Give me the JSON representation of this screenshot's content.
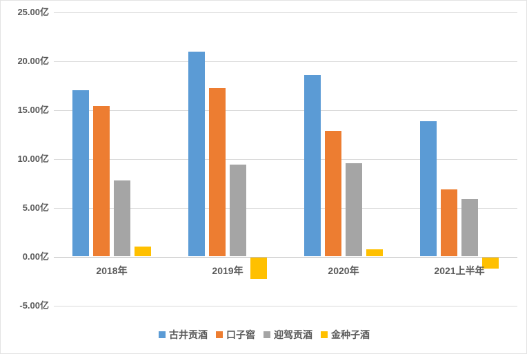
{
  "chart_data": {
    "type": "bar",
    "title": "",
    "unit": "亿",
    "categories": [
      "2018年",
      "2019年",
      "2020年",
      "2021上半年"
    ],
    "series": [
      {
        "name": "古井贡酒",
        "color": "#5B9BD5",
        "values": [
          16.95,
          20.9,
          18.55,
          13.8
        ]
      },
      {
        "name": "口子窖",
        "color": "#ED7D31",
        "values": [
          15.35,
          17.2,
          12.8,
          6.85
        ]
      },
      {
        "name": "迎驾贡酒",
        "color": "#A5A5A5",
        "values": [
          7.75,
          9.4,
          9.5,
          5.85
        ]
      },
      {
        "name": "金种子酒",
        "color": "#FFC000",
        "values": [
          1.0,
          -2.2,
          0.7,
          -1.15
        ]
      }
    ],
    "y_axis": {
      "min": -5,
      "max": 25,
      "step": 5,
      "tick_labels": [
        "25.00亿",
        "20.00亿",
        "15.00亿",
        "10.00亿",
        "5.00亿",
        "0.00亿",
        "-5.00亿"
      ]
    },
    "legend_position": "bottom",
    "grid": true,
    "text_color": "#595959",
    "gridline_color": "#D9D9D9"
  }
}
